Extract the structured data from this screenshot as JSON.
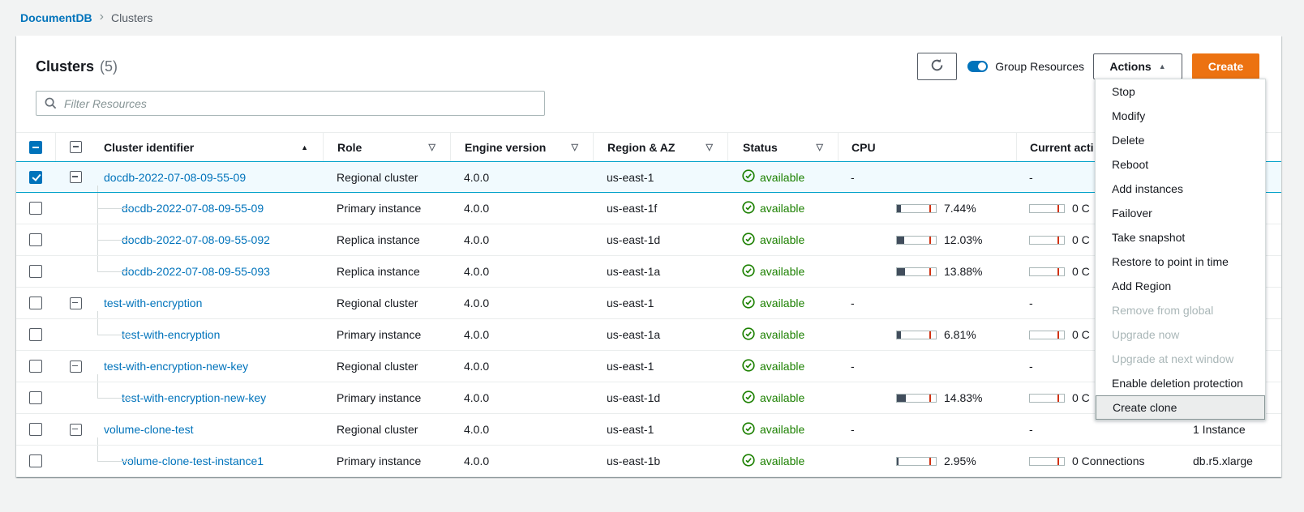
{
  "breadcrumb": {
    "root": "DocumentDB",
    "current": "Clusters"
  },
  "header": {
    "title": "Clusters",
    "count": "(5)",
    "group_resources_label": "Group Resources",
    "group_resources_on": true,
    "actions_label": "Actions",
    "create_label": "Create"
  },
  "filter": {
    "placeholder": "Filter Resources",
    "value": ""
  },
  "icons": {
    "refresh": "circular-arrow-refresh",
    "search": "magnifier",
    "sort_ascending_glyph": "▲",
    "sort_descending_glyph": "▽",
    "actions_caret_glyph": "▲",
    "breadcrumb_chevron_glyph": "›",
    "status_ok": "check-in-circle"
  },
  "colors": {
    "link_blue": "#0073bb",
    "create_orange": "#ec7211",
    "selected_row_bg": "#f1fafe",
    "selected_row_border": "#00a1c9",
    "status_green": "#1d8102",
    "bar_fill": "#414d5c",
    "bar_tick_red": "#d13212",
    "toggle_blue": "#0073bb"
  },
  "table": {
    "columns": {
      "cluster": "Cluster identifier",
      "role": "Role",
      "engine": "Engine version",
      "region": "Region & AZ",
      "status": "Status",
      "cpu": "CPU",
      "activity": "Current acti",
      "size": ""
    },
    "rows": [
      {
        "kind": "cluster",
        "selected": true,
        "tree": null,
        "name": "docdb-2022-07-08-09-55-09",
        "role": "Regional cluster",
        "engine": "4.0.0",
        "region": "us-east-1",
        "status": "available",
        "cpu": null,
        "cpu_label": "-",
        "activity_bar": false,
        "activity_label": "-",
        "size": ""
      },
      {
        "kind": "instance",
        "selected": false,
        "tree": "mid",
        "name": "docdb-2022-07-08-09-55-09",
        "role": "Primary instance",
        "engine": "4.0.0",
        "region": "us-east-1f",
        "status": "available",
        "cpu": 7.44,
        "cpu_label": "7.44%",
        "activity_bar": true,
        "activity_label": "0 C",
        "size": ""
      },
      {
        "kind": "instance",
        "selected": false,
        "tree": "mid",
        "name": "docdb-2022-07-08-09-55-092",
        "role": "Replica instance",
        "engine": "4.0.0",
        "region": "us-east-1d",
        "status": "available",
        "cpu": 12.03,
        "cpu_label": "12.03%",
        "activity_bar": true,
        "activity_label": "0 C",
        "size": ""
      },
      {
        "kind": "instance",
        "selected": false,
        "tree": "last",
        "name": "docdb-2022-07-08-09-55-093",
        "role": "Replica instance",
        "engine": "4.0.0",
        "region": "us-east-1a",
        "status": "available",
        "cpu": 13.88,
        "cpu_label": "13.88%",
        "activity_bar": true,
        "activity_label": "0 C",
        "size": ""
      },
      {
        "kind": "cluster",
        "selected": false,
        "tree": null,
        "name": "test-with-encryption",
        "role": "Regional cluster",
        "engine": "4.0.0",
        "region": "us-east-1",
        "status": "available",
        "cpu": null,
        "cpu_label": "-",
        "activity_bar": false,
        "activity_label": "-",
        "size": ""
      },
      {
        "kind": "instance",
        "selected": false,
        "tree": "last",
        "name": "test-with-encryption",
        "role": "Primary instance",
        "engine": "4.0.0",
        "region": "us-east-1a",
        "status": "available",
        "cpu": 6.81,
        "cpu_label": "6.81%",
        "activity_bar": true,
        "activity_label": "0 C",
        "size": ""
      },
      {
        "kind": "cluster",
        "selected": false,
        "tree": null,
        "name": "test-with-encryption-new-key",
        "role": "Regional cluster",
        "engine": "4.0.0",
        "region": "us-east-1",
        "status": "available",
        "cpu": null,
        "cpu_label": "-",
        "activity_bar": false,
        "activity_label": "-",
        "size": ""
      },
      {
        "kind": "instance",
        "selected": false,
        "tree": "last",
        "name": "test-with-encryption-new-key",
        "role": "Primary instance",
        "engine": "4.0.0",
        "region": "us-east-1d",
        "status": "available",
        "cpu": 14.83,
        "cpu_label": "14.83%",
        "activity_bar": true,
        "activity_label": "0 C",
        "size": ""
      },
      {
        "kind": "cluster",
        "selected": false,
        "tree": null,
        "name": "volume-clone-test",
        "role": "Regional cluster",
        "engine": "4.0.0",
        "region": "us-east-1",
        "status": "available",
        "cpu": null,
        "cpu_label": "-",
        "activity_bar": false,
        "activity_label": "-",
        "size": "1 Instance"
      },
      {
        "kind": "instance",
        "selected": false,
        "tree": "last",
        "name": "volume-clone-test-instance1",
        "role": "Primary instance",
        "engine": "4.0.0",
        "region": "us-east-1b",
        "status": "available",
        "cpu": 2.95,
        "cpu_label": "2.95%",
        "activity_bar": true,
        "activity_label": "0 Connections",
        "size": "db.r5.xlarge"
      }
    ]
  },
  "actions_menu": {
    "items": [
      {
        "label": "Stop",
        "disabled": false,
        "highlighted": false
      },
      {
        "label": "Modify",
        "disabled": false,
        "highlighted": false
      },
      {
        "label": "Delete",
        "disabled": false,
        "highlighted": false
      },
      {
        "label": "Reboot",
        "disabled": false,
        "highlighted": false
      },
      {
        "label": "Add instances",
        "disabled": false,
        "highlighted": false
      },
      {
        "label": "Failover",
        "disabled": false,
        "highlighted": false
      },
      {
        "label": "Take snapshot",
        "disabled": false,
        "highlighted": false
      },
      {
        "label": "Restore to point in time",
        "disabled": false,
        "highlighted": false
      },
      {
        "label": "Add Region",
        "disabled": false,
        "highlighted": false
      },
      {
        "label": "Remove from global",
        "disabled": true,
        "highlighted": false
      },
      {
        "label": "Upgrade now",
        "disabled": true,
        "highlighted": false
      },
      {
        "label": "Upgrade at next window",
        "disabled": true,
        "highlighted": false
      },
      {
        "label": "Enable deletion protection",
        "disabled": false,
        "highlighted": false
      },
      {
        "label": "Create clone",
        "disabled": false,
        "highlighted": true
      }
    ]
  }
}
